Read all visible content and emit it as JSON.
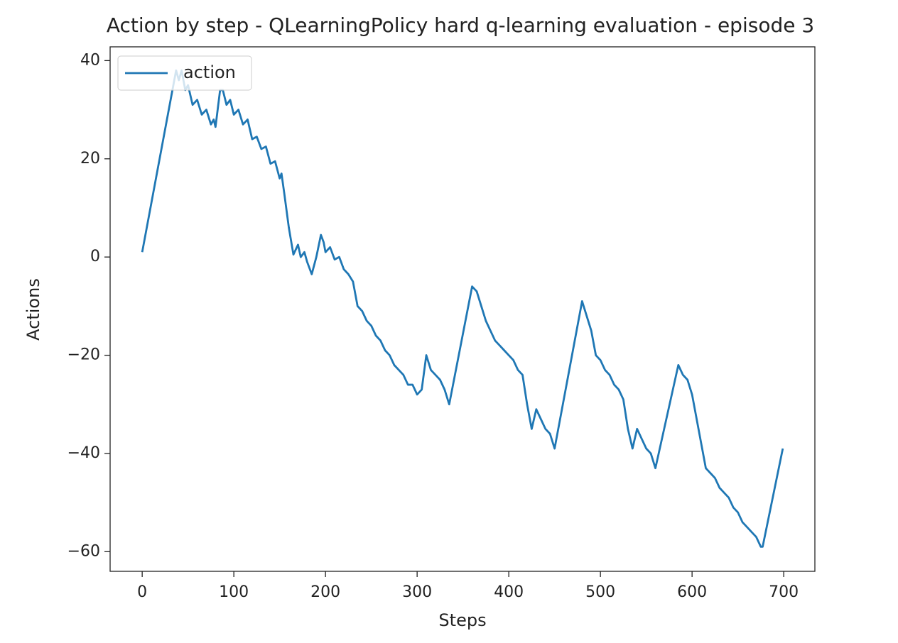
{
  "chart_data": {
    "type": "line",
    "title": "Action by step - QLearningPolicy hard q-learning evaluation - episode 3",
    "x_label": "Steps",
    "y_label": "Actions",
    "x": [
      0,
      37,
      40,
      43,
      47,
      50,
      55,
      60,
      65,
      70,
      75,
      78,
      80,
      85,
      88,
      92,
      96,
      100,
      105,
      110,
      115,
      120,
      125,
      130,
      135,
      140,
      145,
      150,
      152,
      155,
      160,
      165,
      170,
      173,
      177,
      180,
      185,
      190,
      195,
      198,
      200,
      205,
      210,
      215,
      220,
      225,
      230,
      235,
      240,
      245,
      250,
      255,
      260,
      265,
      270,
      275,
      280,
      285,
      290,
      295,
      300,
      305,
      310,
      315,
      320,
      325,
      330,
      335,
      360,
      365,
      370,
      375,
      380,
      385,
      390,
      395,
      400,
      405,
      410,
      415,
      420,
      425,
      430,
      435,
      440,
      445,
      450,
      480,
      485,
      490,
      495,
      500,
      505,
      510,
      515,
      520,
      525,
      530,
      535,
      540,
      545,
      550,
      555,
      560,
      585,
      590,
      595,
      600,
      610,
      615,
      620,
      625,
      630,
      635,
      640,
      645,
      650,
      655,
      660,
      665,
      670,
      675,
      677,
      699
    ],
    "series": [
      {
        "name": "action",
        "color": "#1f77b4",
        "values": [
          1,
          38,
          36,
          38,
          34,
          35,
          31,
          32,
          29,
          30,
          27,
          28,
          26.5,
          34,
          34,
          31,
          32,
          29,
          30,
          27,
          28,
          24,
          24.5,
          22,
          22.5,
          19,
          19.5,
          16,
          17,
          13,
          6,
          0.5,
          2.5,
          0,
          1,
          -1,
          -3.5,
          0,
          4.5,
          3,
          1,
          2,
          -0.5,
          0,
          -2.5,
          -3.5,
          -5,
          -10,
          -11,
          -13,
          -14,
          -16,
          -17,
          -19,
          -20,
          -22,
          -23,
          -24,
          -26,
          -26,
          -28,
          -27,
          -20,
          -23,
          -24,
          -25,
          -27,
          -30,
          -6,
          -7,
          -10,
          -13,
          -15,
          -17,
          -18,
          -19,
          -20,
          -21,
          -23,
          -24,
          -30,
          -35,
          -31,
          -33,
          -35,
          -36,
          -39,
          -9,
          -12,
          -15,
          -20,
          -21,
          -23,
          -24,
          -26,
          -27,
          -29,
          -35,
          -39,
          -35,
          -37,
          -39,
          -40,
          -43,
          -22,
          -24,
          -25,
          -28,
          -38,
          -43,
          -44,
          -45,
          -47,
          -48,
          -49,
          -51,
          -52,
          -54,
          -55,
          -56,
          -57,
          -59,
          -59,
          -39
        ]
      }
    ],
    "xlim": [
      -35,
      734
    ],
    "ylim": [
      -64,
      42.8
    ],
    "xticks": [
      0,
      100,
      200,
      300,
      400,
      500,
      600,
      700
    ],
    "yticks": [
      {
        "value": -60,
        "label": "−60"
      },
      {
        "value": -40,
        "label": "−40"
      },
      {
        "value": -20,
        "label": "−20"
      },
      0,
      20,
      40
    ],
    "legend": "upper left"
  }
}
